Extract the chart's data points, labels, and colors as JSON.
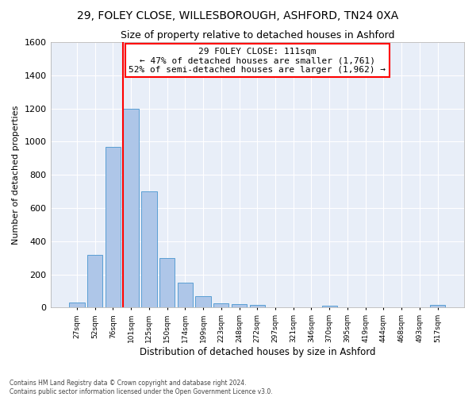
{
  "title1": "29, FOLEY CLOSE, WILLESBOROUGH, ASHFORD, TN24 0XA",
  "title2": "Size of property relative to detached houses in Ashford",
  "xlabel": "Distribution of detached houses by size in Ashford",
  "ylabel": "Number of detached properties",
  "footnote": "Contains HM Land Registry data © Crown copyright and database right 2024.\nContains public sector information licensed under the Open Government Licence v3.0.",
  "bar_labels": [
    "27sqm",
    "52sqm",
    "76sqm",
    "101sqm",
    "125sqm",
    "150sqm",
    "174sqm",
    "199sqm",
    "223sqm",
    "248sqm",
    "272sqm",
    "297sqm",
    "321sqm",
    "346sqm",
    "370sqm",
    "395sqm",
    "419sqm",
    "444sqm",
    "468sqm",
    "493sqm",
    "517sqm"
  ],
  "bar_values": [
    30,
    320,
    970,
    1200,
    700,
    300,
    150,
    70,
    25,
    20,
    15,
    0,
    0,
    0,
    10,
    0,
    0,
    0,
    0,
    0,
    15
  ],
  "bar_color": "#aec6e8",
  "bar_edge_color": "#5a9fd4",
  "property_line_x": 3.0,
  "annotation_text": "29 FOLEY CLOSE: 111sqm\n← 47% of detached houses are smaller (1,761)\n52% of semi-detached houses are larger (1,962) →",
  "annotation_box_color": "white",
  "annotation_box_edge": "red",
  "property_line_color": "red",
  "ylim": [
    0,
    1600
  ],
  "yticks": [
    0,
    200,
    400,
    600,
    800,
    1000,
    1200,
    1400,
    1600
  ],
  "background_color": "#e8eef8",
  "grid_color": "white",
  "title1_fontsize": 10,
  "title2_fontsize": 9,
  "xlabel_fontsize": 8.5,
  "ylabel_fontsize": 8
}
